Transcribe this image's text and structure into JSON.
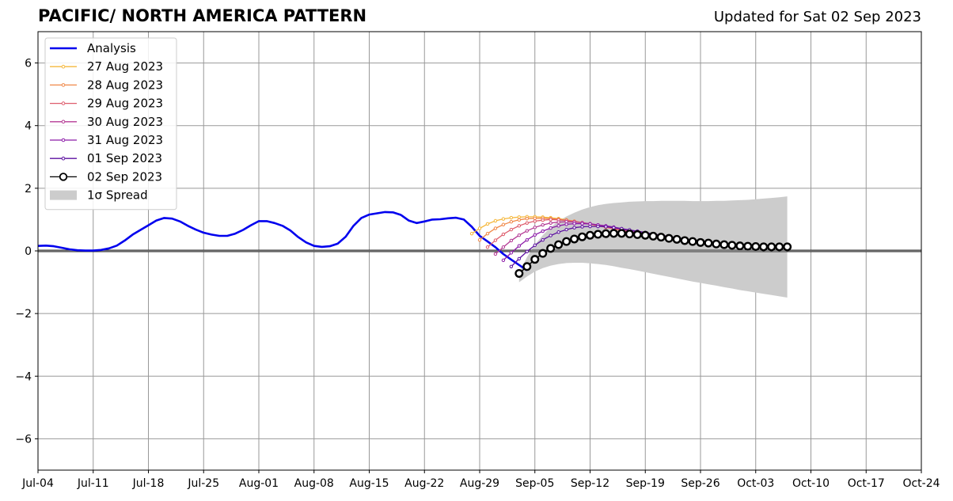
{
  "chart_data": {
    "type": "line",
    "title": "PACIFIC/ NORTH AMERICA PATTERN",
    "subtitle": "Updated for Sat 02 Sep 2023",
    "xlabel": "",
    "ylabel": "",
    "x_range": [
      "2023-07-04",
      "2023-10-24"
    ],
    "ylim": [
      -7,
      7
    ],
    "grid": true,
    "legend_position": "upper-left",
    "x_tick_labels": [
      "Jul-04",
      "Jul-11",
      "Jul-18",
      "Jul-25",
      "Aug-01",
      "Aug-08",
      "Aug-15",
      "Aug-22",
      "Aug-29",
      "Sep-05",
      "Sep-12",
      "Sep-19",
      "Sep-26",
      "Oct-03",
      "Oct-10",
      "Oct-17",
      "Oct-24"
    ],
    "y_ticks": [
      -6,
      -4,
      -2,
      0,
      2,
      4,
      6
    ],
    "y_tick_labels": [
      "−6",
      "−4",
      "−2",
      "0",
      "2",
      "4",
      "6"
    ],
    "analysis": {
      "name": "Analysis",
      "color": "#0000ee",
      "start_date": "2023-07-04",
      "values": [
        0.16,
        0.17,
        0.15,
        0.1,
        0.05,
        0.02,
        0.01,
        0.01,
        0.03,
        0.08,
        0.17,
        0.33,
        0.52,
        0.67,
        0.82,
        0.97,
        1.05,
        1.03,
        0.94,
        0.8,
        0.68,
        0.58,
        0.52,
        0.48,
        0.48,
        0.55,
        0.67,
        0.82,
        0.95,
        0.95,
        0.89,
        0.8,
        0.65,
        0.44,
        0.27,
        0.16,
        0.13,
        0.15,
        0.23,
        0.45,
        0.8,
        1.05,
        1.16,
        1.2,
        1.24,
        1.23,
        1.15,
        0.97,
        0.89,
        0.94,
        1.0,
        1.01,
        1.04,
        1.06,
        1.0,
        0.77,
        0.48,
        0.3,
        0.12,
        -0.1,
        -0.28,
        -0.45,
        -0.62
      ]
    },
    "forecasts": [
      {
        "name": "27 Aug 2023",
        "color": "#f5b83d",
        "start_date": "2023-08-28",
        "values": [
          0.55,
          0.72,
          0.86,
          0.96,
          1.02,
          1.06,
          1.08,
          1.09,
          1.09,
          1.08,
          1.06,
          1.03,
          0.99,
          0.95,
          0.9,
          0.86,
          0.81,
          0.76,
          0.71,
          0.66,
          0.61,
          0.56,
          0.51,
          0.47,
          0.43,
          0.39,
          0.35,
          0.32,
          0.29,
          0.27,
          0.25,
          0.23,
          0.21,
          0.2,
          0.19,
          0.18,
          0.17,
          0.16,
          0.15
        ]
      },
      {
        "name": "28 Aug 2023",
        "color": "#f08848",
        "start_date": "2023-08-29",
        "values": [
          0.35,
          0.55,
          0.72,
          0.84,
          0.93,
          0.99,
          1.03,
          1.04,
          1.04,
          1.03,
          1.01,
          0.98,
          0.94,
          0.9,
          0.85,
          0.8,
          0.75,
          0.7,
          0.65,
          0.6,
          0.55,
          0.5,
          0.46,
          0.42,
          0.38,
          0.34,
          0.31,
          0.28,
          0.26,
          0.24,
          0.22,
          0.2,
          0.19,
          0.18,
          0.17,
          0.16,
          0.15,
          0.15
        ]
      },
      {
        "name": "29 Aug 2023",
        "color": "#de5c6c",
        "start_date": "2023-08-30",
        "values": [
          0.12,
          0.34,
          0.53,
          0.68,
          0.8,
          0.89,
          0.95,
          0.98,
          1.0,
          0.99,
          0.97,
          0.94,
          0.9,
          0.86,
          0.81,
          0.76,
          0.71,
          0.66,
          0.61,
          0.56,
          0.51,
          0.47,
          0.43,
          0.39,
          0.35,
          0.32,
          0.29,
          0.27,
          0.25,
          0.23,
          0.21,
          0.19,
          0.18,
          0.17,
          0.16,
          0.15,
          0.15
        ]
      },
      {
        "name": "30 Aug 2023",
        "color": "#b43a94",
        "start_date": "2023-08-31",
        "values": [
          -0.1,
          0.12,
          0.33,
          0.5,
          0.64,
          0.75,
          0.83,
          0.89,
          0.92,
          0.93,
          0.92,
          0.9,
          0.87,
          0.83,
          0.79,
          0.74,
          0.69,
          0.64,
          0.59,
          0.54,
          0.5,
          0.46,
          0.42,
          0.38,
          0.34,
          0.31,
          0.28,
          0.26,
          0.24,
          0.22,
          0.2,
          0.19,
          0.18,
          0.17,
          0.16,
          0.15
        ]
      },
      {
        "name": "31 Aug 2023",
        "color": "#8c1aa8",
        "start_date": "2023-09-01",
        "values": [
          -0.3,
          -0.06,
          0.16,
          0.35,
          0.51,
          0.63,
          0.73,
          0.8,
          0.85,
          0.87,
          0.87,
          0.86,
          0.83,
          0.8,
          0.76,
          0.71,
          0.66,
          0.62,
          0.57,
          0.53,
          0.48,
          0.44,
          0.4,
          0.37,
          0.33,
          0.3,
          0.27,
          0.25,
          0.23,
          0.21,
          0.19,
          0.18,
          0.17,
          0.16,
          0.15
        ]
      },
      {
        "name": "01 Sep 2023",
        "color": "#5c10a0",
        "start_date": "2023-09-02",
        "values": [
          -0.5,
          -0.25,
          -0.02,
          0.18,
          0.35,
          0.49,
          0.6,
          0.68,
          0.74,
          0.77,
          0.78,
          0.78,
          0.77,
          0.74,
          0.71,
          0.67,
          0.63,
          0.59,
          0.54,
          0.5,
          0.46,
          0.42,
          0.38,
          0.35,
          0.32,
          0.29,
          0.26,
          0.24,
          0.22,
          0.2,
          0.19,
          0.18,
          0.17,
          0.16
        ]
      },
      {
        "name": "02 Sep 2023",
        "color": "#000000",
        "start_date": "2023-09-03",
        "values": [
          -0.72,
          -0.5,
          -0.27,
          -0.08,
          0.08,
          0.2,
          0.3,
          0.38,
          0.45,
          0.5,
          0.53,
          0.55,
          0.56,
          0.56,
          0.54,
          0.52,
          0.5,
          0.47,
          0.44,
          0.4,
          0.37,
          0.33,
          0.3,
          0.27,
          0.25,
          0.22,
          0.2,
          0.18,
          0.16,
          0.15,
          0.14,
          0.13,
          0.13,
          0.13,
          0.13
        ]
      }
    ],
    "spread": {
      "name": "1σ Spread",
      "color": "#cccccc",
      "start_date": "2023-09-03",
      "upper": [
        -0.72,
        -0.2,
        0.2,
        0.5,
        0.75,
        0.95,
        1.1,
        1.22,
        1.32,
        1.4,
        1.46,
        1.5,
        1.53,
        1.55,
        1.57,
        1.58,
        1.59,
        1.59,
        1.6,
        1.6,
        1.6,
        1.6,
        1.59,
        1.59,
        1.59,
        1.6,
        1.6,
        1.61,
        1.62,
        1.63,
        1.65,
        1.67,
        1.69,
        1.71,
        1.74
      ],
      "lower": [
        -1.0,
        -0.82,
        -0.66,
        -0.55,
        -0.47,
        -0.42,
        -0.39,
        -0.38,
        -0.38,
        -0.4,
        -0.42,
        -0.45,
        -0.49,
        -0.54,
        -0.58,
        -0.63,
        -0.68,
        -0.73,
        -0.78,
        -0.83,
        -0.88,
        -0.93,
        -0.98,
        -1.02,
        -1.07,
        -1.11,
        -1.16,
        -1.2,
        -1.25,
        -1.29,
        -1.33,
        -1.37,
        -1.41,
        -1.45,
        -1.49
      ]
    }
  }
}
